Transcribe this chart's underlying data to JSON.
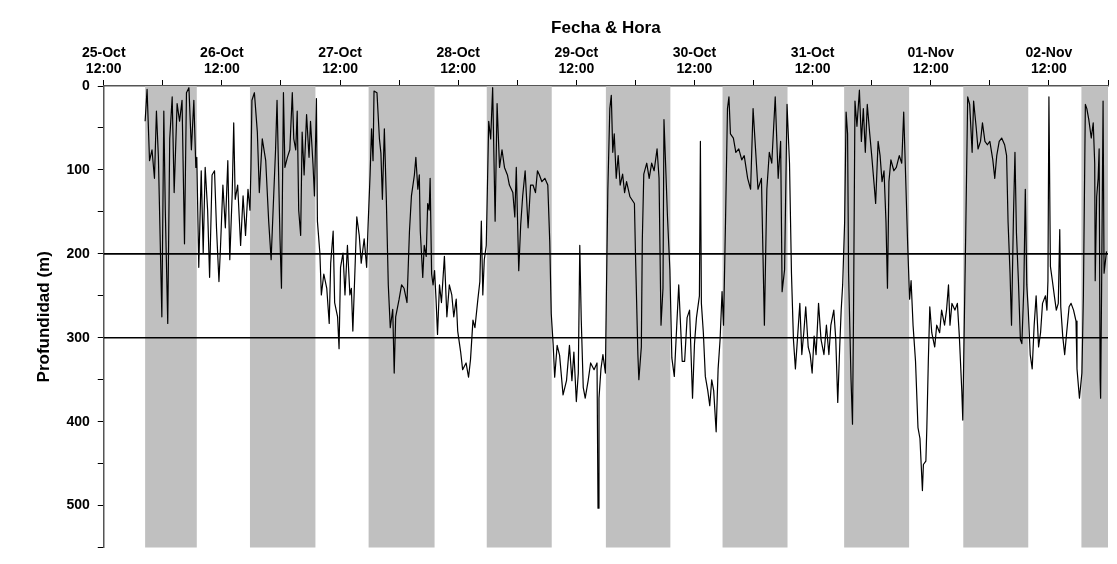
{
  "chart_data": {
    "type": "line",
    "xlabel": "Fecha & Hora",
    "ylabel": "Profundidad (m)",
    "legend": false,
    "marker": "none",
    "line_style": "solid",
    "xlim": [
      "--10-25T12:00",
      "--11-03T00:00"
    ],
    "xticks": [
      {
        "value": "--10-25T12:00",
        "label": "25-Oct 12:00"
      },
      {
        "value": "--10-26T00:00",
        "label": null
      },
      {
        "value": "--10-26T12:00",
        "label": "26-Oct 12:00"
      },
      {
        "value": "--10-27T00:00",
        "label": null
      },
      {
        "value": "--10-27T12:00",
        "label": "27-Oct 12:00"
      },
      {
        "value": "--10-28T00:00",
        "label": null
      },
      {
        "value": "--10-28T12:00",
        "label": "28-Oct 12:00"
      },
      {
        "value": "--10-29T00:00",
        "label": null
      },
      {
        "value": "--10-29T12:00",
        "label": "29-Oct 12:00"
      },
      {
        "value": "--10-30T00:00",
        "label": null
      },
      {
        "value": "--10-30T12:00",
        "label": "30-Oct 12:00"
      },
      {
        "value": "--10-31T00:00",
        "label": null
      },
      {
        "value": "--10-31T12:00",
        "label": "31-Oct 12:00"
      },
      {
        "value": "--11-01T00:00",
        "label": null
      },
      {
        "value": "--11-01T12:00",
        "label": "01-Nov 12:00"
      },
      {
        "value": "--11-02T00:00",
        "label": null
      },
      {
        "value": "--11-02T12:00",
        "label": "02-Nov 12:00"
      },
      {
        "value": "--11-03T00:00",
        "label": null
      }
    ],
    "ylim": [
      550,
      0
    ],
    "yticks": [
      0,
      {
        "value": 50,
        "label": null
      },
      100,
      {
        "value": 150,
        "label": null
      },
      200,
      {
        "value": 250,
        "label": null
      },
      300,
      {
        "value": 350,
        "label": null
      },
      400,
      {
        "value": 450,
        "label": null
      },
      500,
      {
        "value": 550,
        "label": null
      }
    ],
    "bands": [
      {
        "axis": "x",
        "from": "--10-25T20:24",
        "to": "--10-26T06:54",
        "color": "#c0c0c0"
      },
      {
        "axis": "x",
        "from": "--10-26T17:42",
        "to": "--10-27T07:00",
        "color": "#c0c0c0"
      },
      {
        "axis": "x",
        "from": "--10-27T17:48",
        "to": "--10-28T07:12",
        "color": "#c0c0c0"
      },
      {
        "axis": "x",
        "from": "--10-28T17:48",
        "to": "--10-29T07:00",
        "color": "#c0c0c0"
      },
      {
        "axis": "x",
        "from": "--10-29T18:00",
        "to": "--10-30T07:06",
        "color": "#c0c0c0"
      },
      {
        "axis": "x",
        "from": "--10-30T17:42",
        "to": "--10-31T06:54",
        "color": "#c0c0c0"
      },
      {
        "axis": "x",
        "from": "--10-31T18:24",
        "to": "--11-01T07:36",
        "color": "#c0c0c0"
      },
      {
        "axis": "x",
        "from": "--11-01T18:36",
        "to": "--11-02T07:48",
        "color": "#c0c0c0"
      },
      {
        "axis": "x",
        "from": "--11-02T18:36",
        "to": "--11-03T00:00",
        "color": "#c0c0c0"
      }
    ],
    "ref_lines": [
      {
        "axis": "y",
        "value": 200,
        "color": "#000000"
      },
      {
        "axis": "y",
        "value": 300,
        "color": "#000000"
      }
    ],
    "series": [
      {
        "color": "#000000",
        "x": [
          "--10-25T20:24",
          "--10-25T20:48",
          "--10-25T21:18",
          "--10-25T21:48",
          "--10-25T22:18",
          "--10-25T22:42",
          "--10-25T23:06",
          "--10-25T23:48",
          "--10-26T00:12",
          "--10-26T00:30",
          "--10-26T01:00",
          "--10-26T01:24",
          "--10-26T01:54",
          "--10-26T02:18",
          "--10-26T02:54",
          "--10-26T03:24",
          "--10-26T03:54",
          "--10-26T04:24",
          "--10-26T04:48",
          "--10-26T05:18",
          "--10-26T05:48",
          "--10-26T06:18",
          "--10-26T06:42",
          "--10-26T06:54",
          "--10-26T07:18",
          "--10-26T07:48",
          "--10-26T08:12",
          "--10-26T08:36",
          "--10-26T09:06",
          "--10-26T09:30",
          "--10-26T10:00",
          "--10-26T10:30",
          "--10-26T10:54",
          "--10-26T11:24",
          "--10-26T11:42",
          "--10-26T12:12",
          "--10-26T12:42",
          "--10-26T13:12",
          "--10-26T13:36",
          "--10-26T14:06",
          "--10-26T14:24",
          "--10-26T14:42",
          "--10-26T15:12",
          "--10-26T15:48",
          "--10-26T16:18",
          "--10-26T16:48",
          "--10-26T17:18",
          "--10-26T17:42",
          "--10-26T17:54",
          "--10-26T18:06",
          "--10-26T18:36",
          "--10-26T19:12",
          "--10-26T19:36",
          "--10-26T20:12",
          "--10-26T20:54",
          "--10-26T21:30",
          "--10-26T22:00",
          "--10-26T22:24",
          "--10-26T22:54",
          "--10-26T23:12",
          "--10-26T23:48",
          "--10-27T00:06",
          "--10-27T00:30",
          "--10-27T00:48",
          "--10-27T01:18",
          "--10-27T01:48",
          "--10-27T02:18",
          "--10-27T02:36",
          "--10-27T03:00",
          "--10-27T03:18",
          "--10-27T03:36",
          "--10-27T04:00",
          "--10-27T04:18",
          "--10-27T04:42",
          "--10-27T05:12",
          "--10-27T05:42",
          "--10-27T06:00",
          "--10-27T06:30",
          "--10-27T06:48",
          "--10-27T07:12",
          "--10-27T07:24",
          "--10-27T07:54",
          "--10-27T08:12",
          "--10-27T08:42",
          "--10-27T09:18",
          "--10-27T09:48",
          "--10-27T10:06",
          "--10-27T10:36",
          "--10-27T10:54",
          "--10-27T11:30",
          "--10-27T11:48",
          "--10-27T12:06",
          "--10-27T12:36",
          "--10-27T13:00",
          "--10-27T13:30",
          "--10-27T14:00",
          "--10-27T14:18",
          "--10-27T14:36",
          "--10-27T15:00",
          "--10-27T15:24",
          "--10-27T15:54",
          "--10-27T16:18",
          "--10-27T16:54",
          "--10-27T17:24",
          "--10-27T17:42",
          "--10-27T18:06",
          "--10-27T18:24",
          "--10-27T18:42",
          "--10-27T18:54",
          "--10-27T19:30",
          "--10-27T20:00",
          "--10-27T20:18",
          "--10-27T20:36",
          "--10-27T21:00",
          "--10-27T21:24",
          "--10-27T21:48",
          "--10-27T22:12",
          "--10-27T22:42",
          "--10-27T23:00",
          "--10-27T23:18",
          "--10-28T00:00",
          "--10-28T00:30",
          "--10-28T01:00",
          "--10-28T01:36",
          "--10-28T02:06",
          "--10-28T02:30",
          "--10-28T03:06",
          "--10-28T03:24",
          "--10-28T03:48",
          "--10-28T04:06",
          "--10-28T04:18",
          "--10-28T04:48",
          "--10-28T05:06",
          "--10-28T05:30",
          "--10-28T05:48",
          "--10-28T06:06",
          "--10-28T06:18",
          "--10-28T06:36",
          "--10-28T06:54",
          "--10-28T07:12",
          "--10-28T07:30",
          "--10-28T07:48",
          "--10-28T08:12",
          "--10-28T08:36",
          "--10-28T09:12",
          "--10-28T09:42",
          "--10-28T10:12",
          "--10-28T10:42",
          "--10-28T11:06",
          "--10-28T11:36",
          "--10-28T11:54",
          "--10-28T12:30",
          "--10-28T12:54",
          "--10-28T13:36",
          "--10-28T14:06",
          "--10-28T14:30",
          "--10-28T15:00",
          "--10-28T15:24",
          "--10-28T16:00",
          "--10-28T16:24",
          "--10-28T16:42",
          "--10-28T17:00",
          "--10-28T17:18",
          "--10-28T17:42",
          "--10-28T18:12",
          "--10-28T18:36",
          "--10-28T19:00",
          "--10-28T19:30",
          "--10-28T19:54",
          "--10-28T20:24",
          "--10-28T20:54",
          "--10-28T21:24",
          "--10-28T22:00",
          "--10-28T22:24",
          "--10-28T23:06",
          "--10-28T23:30",
          "--10-28T23:48",
          "--10-29T00:18",
          "--10-29T00:42",
          "--10-29T01:06",
          "--10-29T01:36",
          "--10-29T02:12",
          "--10-29T02:42",
          "--10-29T03:12",
          "--10-29T03:42",
          "--10-29T04:06",
          "--10-29T04:30",
          "--10-29T05:00",
          "--10-29T05:36",
          "--10-29T06:12",
          "--10-29T06:36",
          "--10-29T06:54",
          "--10-29T07:18",
          "--10-29T07:36",
          "--10-29T08:06",
          "--10-29T08:36",
          "--10-29T09:18",
          "--10-29T10:00",
          "--10-29T10:36",
          "--10-29T11:06",
          "--10-29T11:30",
          "--10-29T12:00",
          "--10-29T12:24",
          "--10-29T12:42",
          "--10-29T13:00",
          "--10-29T13:24",
          "--10-29T13:48",
          "--10-29T14:24",
          "--10-29T14:54",
          "--10-29T15:36",
          "--10-29T16:12",
          "--10-29T16:24",
          "--10-29T16:36",
          "--10-29T17:00",
          "--10-29T17:24",
          "--10-29T17:54",
          "--10-29T18:06",
          "--10-29T18:24",
          "--10-29T18:48",
          "--10-29T19:06",
          "--10-29T19:24",
          "--10-29T19:42",
          "--10-29T20:06",
          "--10-29T20:30",
          "--10-29T20:54",
          "--10-29T21:24",
          "--10-29T21:48",
          "--10-29T22:12",
          "--10-29T22:54",
          "--10-29T23:48",
          "--10-30T00:00",
          "--10-30T00:30",
          "--10-30T00:42",
          "--10-30T01:12",
          "--10-30T01:24",
          "--10-30T01:42",
          "--10-30T02:18",
          "--10-30T02:48",
          "--10-30T03:18",
          "--10-30T03:48",
          "--10-30T04:24",
          "--10-30T04:48",
          "--10-30T05:12",
          "--10-30T05:36",
          "--10-30T05:48",
          "--10-30T06:06",
          "--10-30T06:30",
          "--10-30T07:00",
          "--10-30T07:24",
          "--10-30T07:54",
          "--10-30T08:24",
          "--10-30T08:48",
          "--10-30T09:06",
          "--10-30T09:30",
          "--10-30T10:00",
          "--10-30T10:30",
          "--10-30T11:00",
          "--10-30T11:36",
          "--10-30T12:00",
          "--10-30T12:24",
          "--10-30T13:00",
          "--10-30T13:12",
          "--10-30T13:24",
          "--10-30T13:48",
          "--10-30T14:12",
          "--10-30T14:42",
          "--10-30T15:06",
          "--10-30T15:30",
          "--10-30T15:54",
          "--10-30T16:24",
          "--10-30T16:48",
          "--10-30T17:12",
          "--10-30T17:36",
          "--10-30T17:54",
          "--10-30T18:18",
          "--10-30T18:42",
          "--10-30T19:00",
          "--10-30T19:18",
          "--10-30T19:54",
          "--10-30T20:24",
          "--10-30T21:00",
          "--10-30T21:36",
          "--10-30T22:06",
          "--10-30T22:48",
          "--10-30T23:24",
          "--10-30T23:54",
          "--10-31T00:24",
          "--10-31T00:54",
          "--10-31T01:36",
          "--10-31T02:12",
          "--10-31T02:42",
          "--10-31T03:12",
          "--10-31T03:42",
          "--10-31T04:24",
          "--10-31T05:00",
          "--10-31T05:30",
          "--10-31T05:48",
          "--10-31T06:18",
          "--10-31T06:48",
          "--10-31T07:18",
          "--10-31T07:42",
          "--10-31T08:06",
          "--10-31T08:30",
          "--10-31T09:00",
          "--10-31T09:24",
          "--10-31T09:48",
          "--10-31T10:12",
          "--10-31T10:36",
          "--10-31T11:06",
          "--10-31T11:30",
          "--10-31T11:54",
          "--10-31T12:18",
          "--10-31T12:42",
          "--10-31T13:12",
          "--10-31T13:42",
          "--10-31T14:18",
          "--10-31T14:48",
          "--10-31T15:18",
          "--10-31T15:42",
          "--10-31T16:18",
          "--10-31T16:42",
          "--10-31T17:06",
          "--10-31T17:30",
          "--10-31T17:48",
          "--10-31T18:06",
          "--10-31T18:30",
          "--10-31T18:48",
          "--10-31T19:06",
          "--10-31T19:18",
          "--10-31T19:48",
          "--10-31T20:06",
          "--10-31T20:18",
          "--10-31T20:36",
          "--10-31T21:00",
          "--10-31T21:30",
          "--10-31T21:54",
          "--10-31T22:18",
          "--10-31T22:42",
          "--10-31T23:06",
          "--10-31T23:36",
          "--11-01T00:00",
          "--11-01T00:30",
          "--11-01T00:48",
          "--11-01T01:18",
          "--11-01T01:42",
          "--11-01T02:06",
          "--11-01T02:30",
          "--11-01T02:54",
          "--11-01T03:12",
          "--11-01T03:30",
          "--11-01T03:54",
          "--11-01T04:30",
          "--11-01T05:00",
          "--11-01T05:36",
          "--11-01T06:06",
          "--11-01T06:30",
          "--11-01T06:54",
          "--11-01T07:18",
          "--11-01T07:42",
          "--11-01T08:00",
          "--11-01T08:24",
          "--11-01T08:54",
          "--11-01T09:24",
          "--11-01T09:48",
          "--11-01T10:18",
          "--11-01T10:30",
          "--11-01T11:00",
          "--11-01T11:12",
          "--11-01T11:30",
          "--11-01T11:48",
          "--11-01T12:12",
          "--11-01T12:48",
          "--11-01T13:12",
          "--11-01T13:48",
          "--11-01T14:12",
          "--11-01T14:48",
          "--11-01T15:12",
          "--11-01T15:36",
          "--11-01T15:54",
          "--11-01T16:18",
          "--11-01T16:54",
          "--11-01T17:24",
          "--11-01T17:48",
          "--11-01T18:18",
          "--11-01T18:30",
          "--11-01T18:48",
          "--11-01T19:06",
          "--11-01T19:30",
          "--11-01T19:54",
          "--11-01T20:24",
          "--11-01T20:42",
          "--11-01T21:12",
          "--11-01T21:36",
          "--11-01T22:06",
          "--11-01T22:30",
          "--11-01T23:00",
          "--11-01T23:30",
          "--11-02T00:00",
          "--11-02T00:36",
          "--11-02T01:00",
          "--11-02T01:24",
          "--11-02T01:54",
          "--11-02T02:24",
          "--11-02T03:00",
          "--11-02T03:24",
          "--11-02T03:42",
          "--11-02T04:06",
          "--11-02T04:24",
          "--11-02T04:48",
          "--11-02T05:06",
          "--11-02T05:24",
          "--11-02T05:48",
          "--11-02T06:12",
          "--11-02T06:30",
          "--11-02T06:54",
          "--11-02T07:12",
          "--11-02T07:30",
          "--11-02T07:48",
          "--11-02T08:12",
          "--11-02T08:36",
          "--11-02T09:00",
          "--11-02T09:24",
          "--11-02T09:54",
          "--11-02T10:18",
          "--11-02T10:42",
          "--11-02T11:18",
          "--11-02T11:36",
          "--11-02T11:48",
          "--11-02T12:00",
          "--11-02T12:18",
          "--11-02T12:42",
          "--11-02T13:06",
          "--11-02T13:30",
          "--11-02T13:54",
          "--11-02T14:12",
          "--11-02T14:24",
          "--11-02T14:48",
          "--11-02T15:12",
          "--11-02T15:36",
          "--11-02T16:06",
          "--11-02T16:30",
          "--11-02T17:00",
          "--11-02T17:30",
          "--11-02T17:42",
          "--11-02T18:12",
          "--11-02T18:42",
          "--11-02T19:00",
          "--11-02T19:24",
          "--11-02T19:42",
          "--11-02T20:06",
          "--11-02T20:36",
          "--11-02T21:00",
          "--11-02T21:18",
          "--11-02T21:24",
          "--11-02T21:42",
          "--11-02T22:00",
          "--11-02T22:12",
          "--11-02T22:24",
          "--11-02T22:30",
          "--11-02T22:42",
          "--11-02T23:00",
          "--11-02T23:12",
          "--11-02T23:42"
        ],
        "values": [
          42,
          4,
          89,
          76,
          110,
          30,
          85,
          275,
          30,
          148,
          283,
          63,
          13,
          127,
          21,
          42,
          17,
          188,
          8,
          2,
          76,
          17,
          97,
          85,
          216,
          101,
          199,
          97,
          148,
          228,
          106,
          101,
          169,
          233,
          194,
          118,
          169,
          89,
          207,
          127,
          44,
          135,
          118,
          190,
          131,
          178,
          123,
          148,
          97,
          17,
          8,
          55,
          127,
          63,
          89,
          161,
          207,
          148,
          76,
          17,
          182,
          241,
          8,
          97,
          85,
          76,
          8,
          63,
          76,
          30,
          148,
          178,
          55,
          106,
          34,
          85,
          42,
          93,
          131,
          15,
          161,
          199,
          249,
          224,
          241,
          283,
          211,
          173,
          258,
          275,
          313,
          216,
          199,
          249,
          190,
          249,
          241,
          292,
          224,
          156,
          178,
          211,
          182,
          216,
          165,
          106,
          51,
          89,
          6,
          8,
          63,
          80,
          135,
          51,
          135,
          237,
          288,
          266,
          342,
          275,
          254,
          237,
          241,
          258,
          173,
          131,
          106,
          85,
          123,
          106,
          173,
          228,
          190,
          203,
          140,
          148,
          110,
          224,
          237,
          220,
          254,
          296,
          237,
          258,
          203,
          275,
          237,
          249,
          275,
          254,
          292,
          317,
          338,
          330,
          347,
          326,
          279,
          288,
          254,
          233,
          161,
          249,
          207,
          190,
          42,
          63,
          2,
          161,
          21,
          97,
          76,
          97,
          106,
          118,
          127,
          156,
          97,
          220,
          165,
          131,
          101,
          169,
          118,
          118,
          127,
          101,
          106,
          114,
          110,
          118,
          186,
          271,
          309,
          347,
          309,
          321,
          368,
          351,
          309,
          351,
          317,
          376,
          342,
          190,
          279,
          359,
          372,
          351,
          330,
          338,
          330,
          503,
          372,
          337,
          320,
          342,
          250,
          123,
          27,
          11,
          79,
          57,
          110,
          83,
          118,
          105,
          127,
          114,
          132,
          140,
          197,
          320,
          350,
          311,
          184,
          105,
          92,
          110,
          92,
          101,
          75,
          110,
          285,
          241,
          40,
          88,
          154,
          219,
          324,
          346,
          285,
          237,
          276,
          328,
          328,
          276,
          267,
          372,
          307,
          276,
          250,
          66,
          259,
          294,
          346,
          363,
          381,
          350,
          363,
          412,
          337,
          302,
          245,
          285,
          162,
          27,
          13,
          57,
          62,
          79,
          75,
          88,
          83,
          110,
          123,
          27,
          75,
          123,
          110,
          285,
          123,
          79,
          92,
          13,
          110,
          66,
          245,
          219,
          22,
          92,
          223,
          302,
          337,
          294,
          259,
          320,
          294,
          263,
          311,
          320,
          342,
          298,
          320,
          259,
          302,
          320,
          285,
          320,
          285,
          267,
          302,
          377,
          311,
          267,
          237,
          162,
          31,
          57,
          223,
          350,
          403,
          276,
          18,
          48,
          5,
          66,
          27,
          79,
          22,
          57,
          83,
          118,
          140,
          66,
          83,
          114,
          101,
          162,
          241,
          114,
          88,
          101,
          97,
          83,
          92,
          31,
          110,
          188,
          254,
          232,
          285,
          328,
          407,
          420,
          482,
          451,
          447,
          407,
          328,
          263,
          294,
          311,
          285,
          294,
          267,
          285,
          267,
          237,
          285,
          259,
          267,
          259,
          298,
          363,
          398,
          285,
          175,
          13,
          22,
          79,
          18,
          48,
          75,
          66,
          44,
          66,
          70,
          66,
          88,
          110,
          83,
          66,
          62,
          70,
          83,
          162,
          223,
          285,
          154,
          79,
          175,
          232,
          302,
          307,
          241,
          123,
          237,
          267,
          320,
          337,
          285,
          250,
          311,
          294,
          259,
          250,
          267,
          232,
          13,
          215,
          232,
          250,
          267,
          259,
          171,
          263,
          298,
          320,
          294,
          263,
          259,
          267,
          280,
          337,
          372,
          342,
          250,
          22,
          27,
          40,
          62,
          44,
          92,
          232,
          132,
          110,
          75,
          350,
          372,
          241,
          18,
          223,
          197
        ]
      }
    ]
  }
}
